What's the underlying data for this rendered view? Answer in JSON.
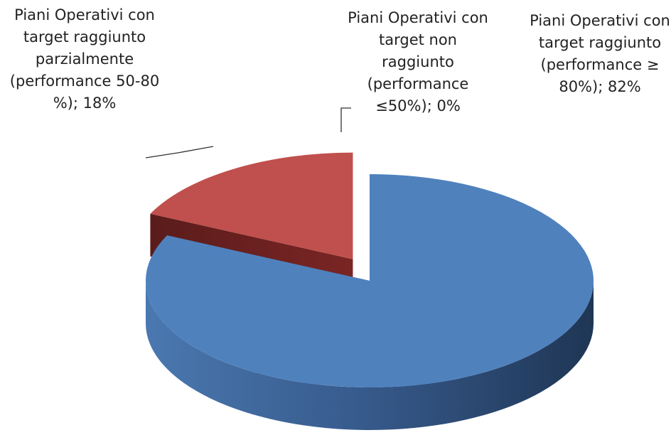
{
  "chart_data": {
    "type": "pie3d",
    "categories": [
      "Piani Operativi con target raggiunto (performance ≥ 80%)",
      "Piani Operativi con target raggiunto parzialmente (performance 50-80 %)",
      "Piani Operativi con target non raggiunto (performance ≤50%)"
    ],
    "values": [
      82,
      18,
      0
    ],
    "value_labels": [
      "82%",
      "18%",
      "0%"
    ],
    "label_separator": "; ",
    "colors": [
      "#4f81bd",
      "#c0504d",
      "#9bbb59"
    ],
    "explode": [
      0,
      0.25,
      0
    ]
  }
}
